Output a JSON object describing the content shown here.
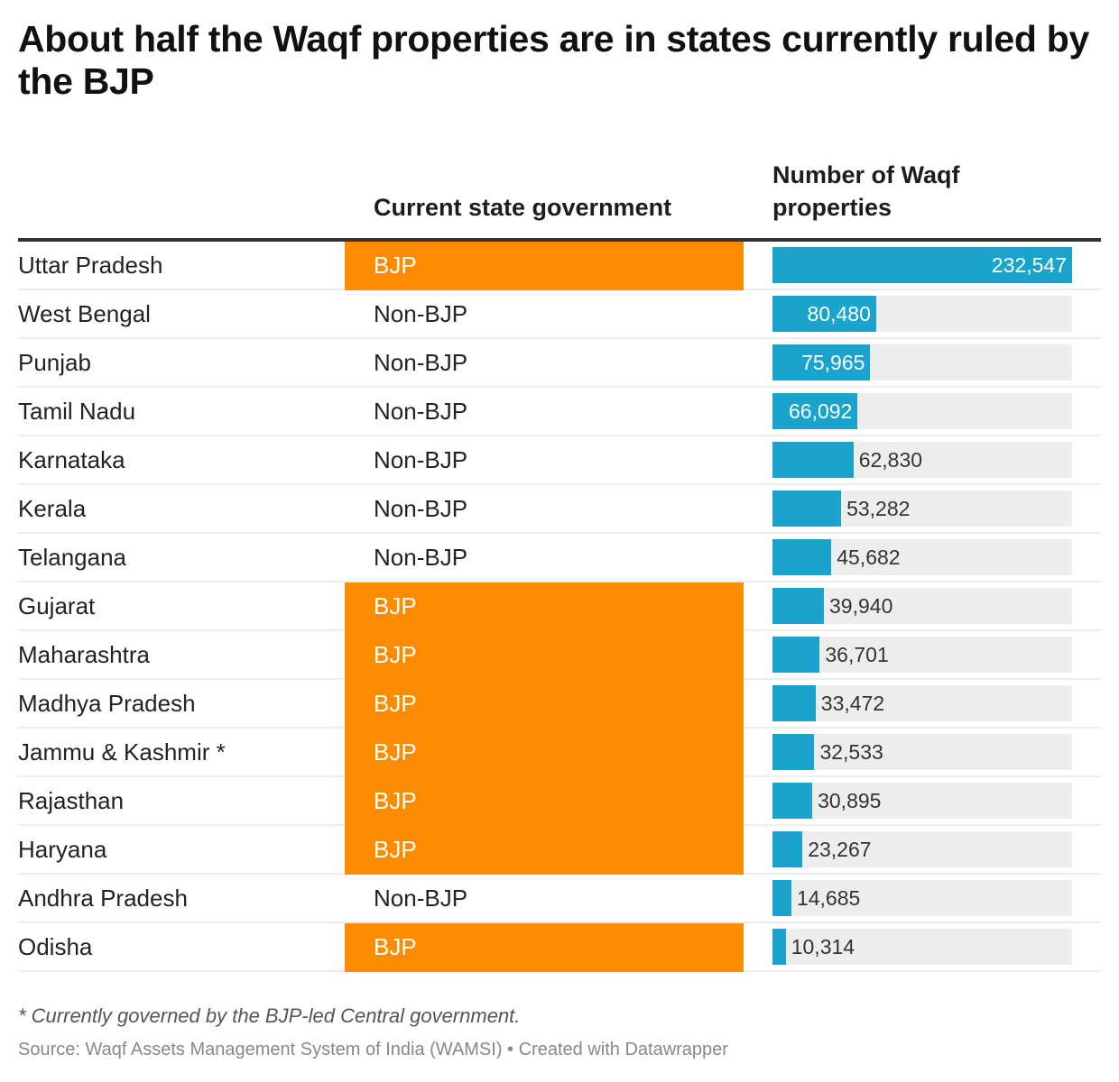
{
  "title": "About half the Waqf properties are in states currently ruled by the BJP",
  "chart_data": {
    "type": "table",
    "columns": [
      "",
      "Current state government",
      "Number of Waqf properties"
    ],
    "colors": {
      "bjp": "#fb8c00",
      "bar": "#1aa3cc",
      "track": "#ededed"
    },
    "rows": [
      {
        "state": "Uttar Pradesh",
        "gov": "BJP",
        "value": 232547,
        "label": "232,547"
      },
      {
        "state": "West Bengal",
        "gov": "Non-BJP",
        "value": 80480,
        "label": "80,480"
      },
      {
        "state": "Punjab",
        "gov": "Non-BJP",
        "value": 75965,
        "label": "75,965"
      },
      {
        "state": "Tamil Nadu",
        "gov": "Non-BJP",
        "value": 66092,
        "label": "66,092"
      },
      {
        "state": "Karnataka",
        "gov": "Non-BJP",
        "value": 62830,
        "label": "62,830"
      },
      {
        "state": "Kerala",
        "gov": "Non-BJP",
        "value": 53282,
        "label": "53,282"
      },
      {
        "state": "Telangana",
        "gov": "Non-BJP",
        "value": 45682,
        "label": "45,682"
      },
      {
        "state": "Gujarat",
        "gov": "BJP",
        "value": 39940,
        "label": "39,940"
      },
      {
        "state": "Maharashtra",
        "gov": "BJP",
        "value": 36701,
        "label": "36,701"
      },
      {
        "state": "Madhya Pradesh",
        "gov": "BJP",
        "value": 33472,
        "label": "33,472"
      },
      {
        "state": "Jammu & Kashmir *",
        "gov": "BJP",
        "value": 32533,
        "label": "32,533"
      },
      {
        "state": "Rajasthan",
        "gov": "BJP",
        "value": 30895,
        "label": "30,895"
      },
      {
        "state": "Haryana",
        "gov": "BJP",
        "value": 23267,
        "label": "23,267"
      },
      {
        "state": "Andhra Pradesh",
        "gov": "Non-BJP",
        "value": 14685,
        "label": "14,685"
      },
      {
        "state": "Odisha",
        "gov": "BJP",
        "value": 10314,
        "label": "10,314"
      }
    ]
  },
  "note": "* Currently governed by the BJP-led Central government.",
  "source": "Source: Waqf Assets Management System of India (WAMSI) • Created with Datawrapper"
}
